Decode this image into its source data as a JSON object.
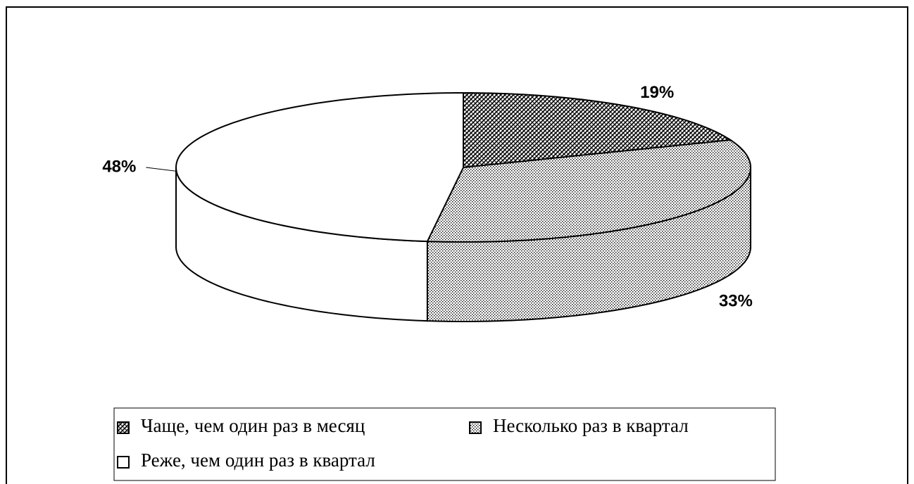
{
  "chart_data": {
    "type": "pie3d",
    "categories": [
      "Чаще, чем один раз в месяц",
      "Несколько раз в квартал",
      "Реже, чем один раз в квартал"
    ],
    "values": [
      19,
      33,
      48
    ],
    "value_labels": [
      "19%",
      "33%",
      "48%"
    ],
    "patterns": [
      "crosshatch",
      "dots",
      "none"
    ],
    "color": "#000000"
  }
}
